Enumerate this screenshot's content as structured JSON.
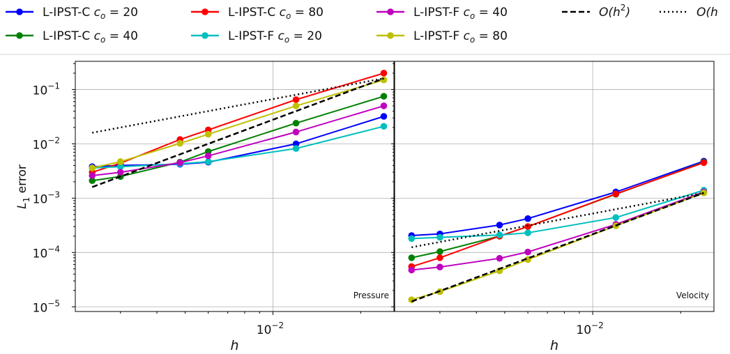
{
  "chart_data": [
    {
      "type": "line",
      "panel_label": "Pressure",
      "xlabel": "h",
      "ylabel": "L_1 error",
      "x_scale": "log",
      "y_scale": "log",
      "xlim": [
        0.0021,
        0.026
      ],
      "ylim": [
        8.2e-06,
        0.33
      ],
      "x_tick_label": "10^-2",
      "y_tick_labels": [
        "10^-5",
        "10^-4",
        "10^-3",
        "10^-2",
        "10^-1"
      ],
      "grid": true,
      "series": [
        {
          "name": "L-IPST-C c_o = 20",
          "color": "#0000ff",
          "style": "solid-marker",
          "x": [
            0.0024,
            0.003,
            0.0048,
            0.006,
            0.012,
            0.024
          ],
          "y": [
            0.0038,
            0.004,
            0.0042,
            0.0046,
            0.01,
            0.032
          ]
        },
        {
          "name": "L-IPST-C c_o = 40",
          "color": "#008000",
          "style": "solid-marker",
          "x": [
            0.0024,
            0.003,
            0.0048,
            0.006,
            0.012,
            0.024
          ],
          "y": [
            0.0021,
            0.0025,
            0.0046,
            0.0072,
            0.024,
            0.075
          ]
        },
        {
          "name": "L-IPST-C c_o = 80",
          "color": "#ff0000",
          "style": "solid-marker",
          "x": [
            0.0024,
            0.003,
            0.0048,
            0.006,
            0.012,
            0.024
          ],
          "y": [
            0.003,
            0.0044,
            0.012,
            0.018,
            0.065,
            0.2
          ]
        },
        {
          "name": "L-IPST-F c_o = 20",
          "color": "#00bfbf",
          "style": "solid-marker",
          "x": [
            0.0024,
            0.003,
            0.0048,
            0.006,
            0.012,
            0.024
          ],
          "y": [
            0.0036,
            0.0038,
            0.0043,
            0.0047,
            0.0082,
            0.021
          ]
        },
        {
          "name": "L-IPST-F c_o = 40",
          "color": "#bf00bf",
          "style": "solid-marker",
          "x": [
            0.0024,
            0.003,
            0.0048,
            0.006,
            0.012,
            0.024
          ],
          "y": [
            0.0026,
            0.003,
            0.0045,
            0.006,
            0.0165,
            0.05
          ]
        },
        {
          "name": "L-IPST-F c_o = 80",
          "color": "#bfbf00",
          "style": "solid-marker",
          "x": [
            0.0024,
            0.003,
            0.0048,
            0.006,
            0.012,
            0.024
          ],
          "y": [
            0.0036,
            0.0047,
            0.0102,
            0.015,
            0.05,
            0.15
          ]
        },
        {
          "name": "O(h^2)",
          "color": "#000000",
          "style": "dashed",
          "x": [
            0.0024,
            0.024
          ],
          "y": [
            0.0016,
            0.16
          ]
        },
        {
          "name": "O(h",
          "color": "#000000",
          "style": "dotted",
          "x": [
            0.0024,
            0.024
          ],
          "y": [
            0.016,
            0.16
          ]
        }
      ]
    },
    {
      "type": "line",
      "panel_label": "Velocity",
      "xlabel": "h",
      "x_scale": "log",
      "y_scale": "log",
      "xlim": [
        0.0021,
        0.026
      ],
      "ylim": [
        8.2e-06,
        0.33
      ],
      "x_tick_label": "10^-2",
      "grid": true,
      "series": [
        {
          "name": "L-IPST-C c_o = 20",
          "color": "#0000ff",
          "style": "solid-marker",
          "x": [
            0.0024,
            0.003,
            0.0048,
            0.006,
            0.012,
            0.024
          ],
          "y": [
            0.000205,
            0.00022,
            0.00032,
            0.00042,
            0.0013,
            0.0048
          ]
        },
        {
          "name": "L-IPST-C c_o = 40",
          "color": "#008000",
          "style": "solid-marker",
          "x": [
            0.0024,
            0.003,
            0.0048,
            0.006,
            0.012,
            0.024
          ],
          "y": [
            8e-05,
            0.000104,
            0.0002,
            0.0003,
            0.00118,
            0.0046
          ]
        },
        {
          "name": "L-IPST-C c_o = 80",
          "color": "#ff0000",
          "style": "solid-marker",
          "x": [
            0.0024,
            0.003,
            0.0048,
            0.006,
            0.012,
            0.024
          ],
          "y": [
            5.5e-05,
            8e-05,
            0.0002,
            0.0003,
            0.0012,
            0.0045
          ]
        },
        {
          "name": "L-IPST-F c_o = 20",
          "color": "#00bfbf",
          "style": "solid-marker",
          "x": [
            0.0024,
            0.003,
            0.0048,
            0.006,
            0.012,
            0.024
          ],
          "y": [
            0.00018,
            0.00019,
            0.00021,
            0.00023,
            0.00044,
            0.0014
          ]
        },
        {
          "name": "L-IPST-F c_o = 40",
          "color": "#bf00bf",
          "style": "solid-marker",
          "x": [
            0.0024,
            0.003,
            0.0048,
            0.006,
            0.012,
            0.024
          ],
          "y": [
            4.75e-05,
            5.4e-05,
            7.8e-05,
            0.000102,
            0.00033,
            0.0013
          ]
        },
        {
          "name": "L-IPST-F c_o = 80",
          "color": "#bfbf00",
          "style": "solid-marker",
          "x": [
            0.0024,
            0.003,
            0.0048,
            0.006,
            0.012,
            0.024
          ],
          "y": [
            1.35e-05,
            1.9e-05,
            4.6e-05,
            7.4e-05,
            0.00031,
            0.00125
          ]
        },
        {
          "name": "O(h^2)",
          "color": "#000000",
          "style": "dashed",
          "x": [
            0.0024,
            0.024
          ],
          "y": [
            1.25e-05,
            0.00125
          ]
        },
        {
          "name": "O(h",
          "color": "#000000",
          "style": "dotted",
          "x": [
            0.0024,
            0.024
          ],
          "y": [
            0.000125,
            0.00125
          ]
        }
      ]
    }
  ],
  "legend": {
    "placement": "top",
    "entries": [
      {
        "base": "L-IPST-C ",
        "math": "c",
        "sub": "o",
        "value": " = 20",
        "color": "#0000ff",
        "style": "solid-marker"
      },
      {
        "base": "L-IPST-C ",
        "math": "c",
        "sub": "o",
        "value": " = 80",
        "color": "#ff0000",
        "style": "solid-marker"
      },
      {
        "base": "L-IPST-F ",
        "math": "c",
        "sub": "o",
        "value": " = 40",
        "color": "#bf00bf",
        "style": "solid-marker"
      },
      {
        "base": "",
        "math": "O(h",
        "sup": "2",
        "tail": ")",
        "color": "#000000",
        "style": "dashed"
      },
      {
        "base": "",
        "math": "O(h",
        "color": "#000000",
        "style": "dotted"
      },
      {
        "base": "L-IPST-C ",
        "math": "c",
        "sub": "o",
        "value": " = 40",
        "color": "#008000",
        "style": "solid-marker"
      },
      {
        "base": "L-IPST-F ",
        "math": "c",
        "sub": "o",
        "value": " = 20",
        "color": "#00bfbf",
        "style": "solid-marker"
      },
      {
        "base": "L-IPST-F ",
        "math": "c",
        "sub": "o",
        "value": " = 80",
        "color": "#bfbf00",
        "style": "solid-marker"
      }
    ]
  },
  "axis_text": {
    "ylabel_main": "L",
    "ylabel_sub": "1",
    "ylabel_rest": " error",
    "xlabel": "h",
    "tick_base": "10",
    "x_tick_exp": "−2",
    "y_tick_exps": [
      "−5",
      "−4",
      "−3",
      "−2",
      "−1"
    ]
  }
}
